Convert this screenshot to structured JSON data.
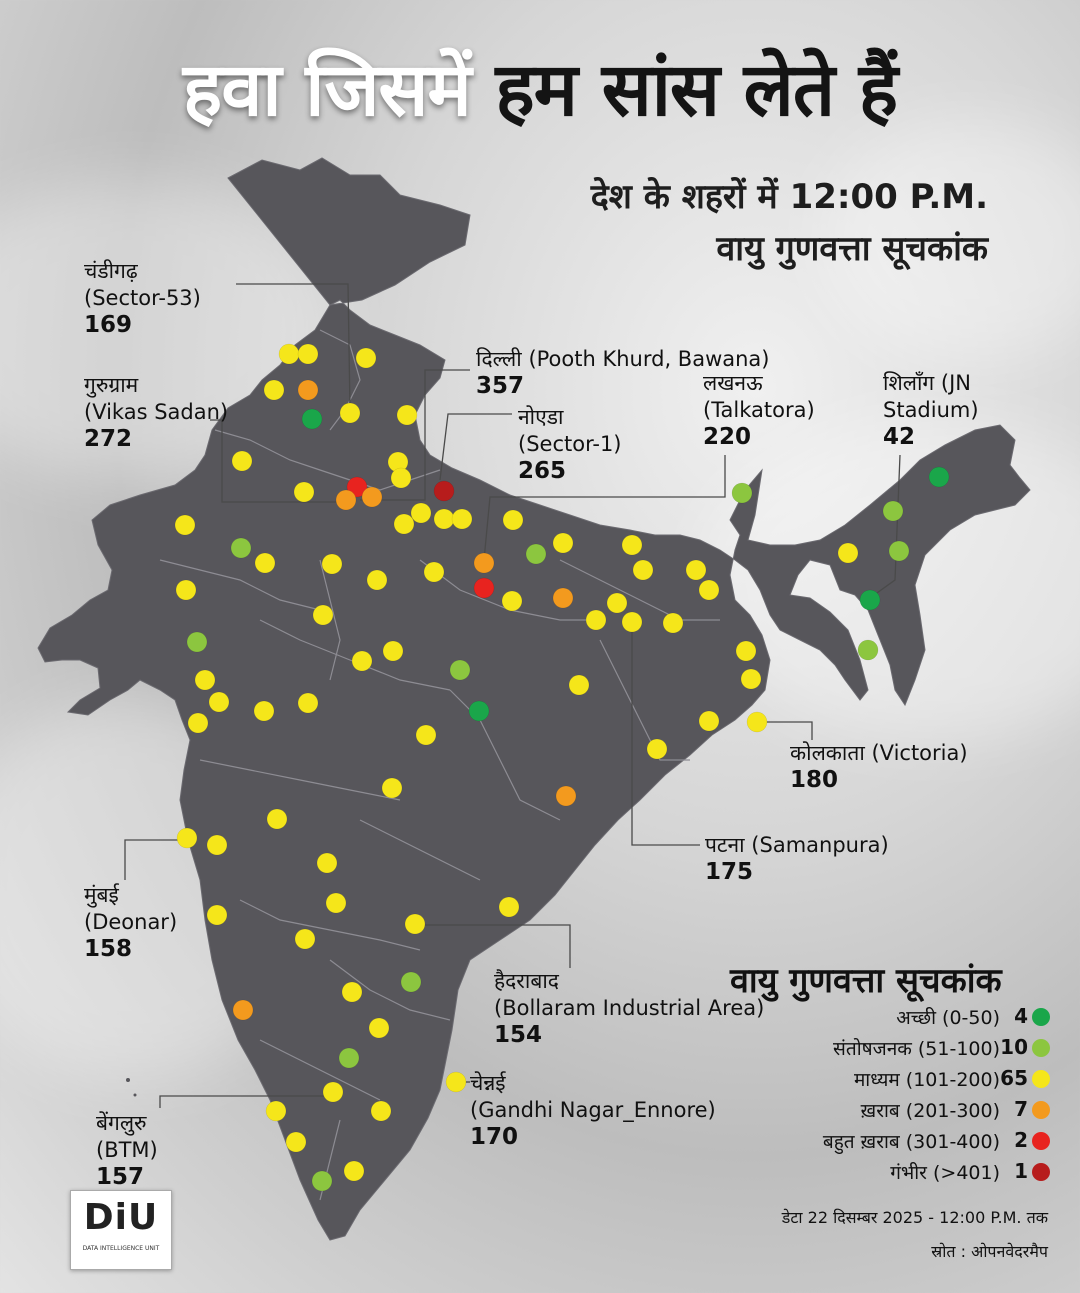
{
  "title": {
    "part_white": "हवा जिसमें",
    "part_black": "हम सांस लेते हैं"
  },
  "subtitle": {
    "line1": "देश के शहरों में 12:00 P.M.",
    "line2": "वायु गुणवत्ता सूचकांक"
  },
  "city_labels": [
    {
      "name": "चंडीगढ़",
      "station": "(Sector-53)",
      "aqi": "169"
    },
    {
      "name": "गुरुग्राम",
      "station": "(Vikas Sadan)",
      "aqi": "272"
    },
    {
      "name": "दिल्ली",
      "station": "(Pooth Khurd, Bawana)",
      "aqi": "357"
    },
    {
      "name": "नोएडा",
      "station": "(Sector-1)",
      "aqi": "265"
    },
    {
      "name": "लखनऊ",
      "station": "(Talkatora)",
      "aqi": "220"
    },
    {
      "name": "शिलाँग",
      "station": "(JN Stadium)",
      "aqi": "42"
    },
    {
      "name": "कोलकाता",
      "station": "(Victoria)",
      "aqi": "180"
    },
    {
      "name": "पटना",
      "station": "(Samanpura)",
      "aqi": "175"
    },
    {
      "name": "मुंबई",
      "station": "(Deonar)",
      "aqi": "158"
    },
    {
      "name": "हैदराबाद",
      "station": "(Bollaram Industrial Area)",
      "aqi": "154"
    },
    {
      "name": "चेन्नई",
      "station": "(Gandhi Nagar_Ennore)",
      "aqi": "170"
    },
    {
      "name": "बेंगलुरु",
      "station": "(BTM)",
      "aqi": "157"
    }
  ],
  "legend": {
    "title": "वायु गुणवत्ता सूचकांक",
    "items": [
      {
        "label": "अच्छी (0-50)",
        "count": "4",
        "color": "#1aa64a"
      },
      {
        "label": "संतोषजनक (51-100)",
        "count": "10",
        "color": "#8cc63f"
      },
      {
        "label": "माध्यम (101-200)",
        "count": "65",
        "color": "#f5e61a"
      },
      {
        "label": "ख़राब (201-300)",
        "count": "7",
        "color": "#f39a1e"
      },
      {
        "label": "बहुत ख़राब (301-400)",
        "count": "2",
        "color": "#e8231f"
      },
      {
        "label": "गंभीर (>401)",
        "count": "1",
        "color": "#b71c1c"
      }
    ]
  },
  "footer": {
    "date": "डेटा 22 दिसम्बर 2025 - 12:00 P.M. तक",
    "source": "स्रोत : ओपनवेदरमैप"
  },
  "logo": {
    "text": "DiU",
    "subtext": "DATA INTELLIGENCE UNIT"
  },
  "colors": {
    "map_fill": "#57565b",
    "good": "#1aa64a",
    "satisfactory": "#8cc63f",
    "moderate": "#f5e61a",
    "poor": "#f39a1e",
    "very_poor": "#e8231f",
    "severe": "#b71c1c"
  }
}
